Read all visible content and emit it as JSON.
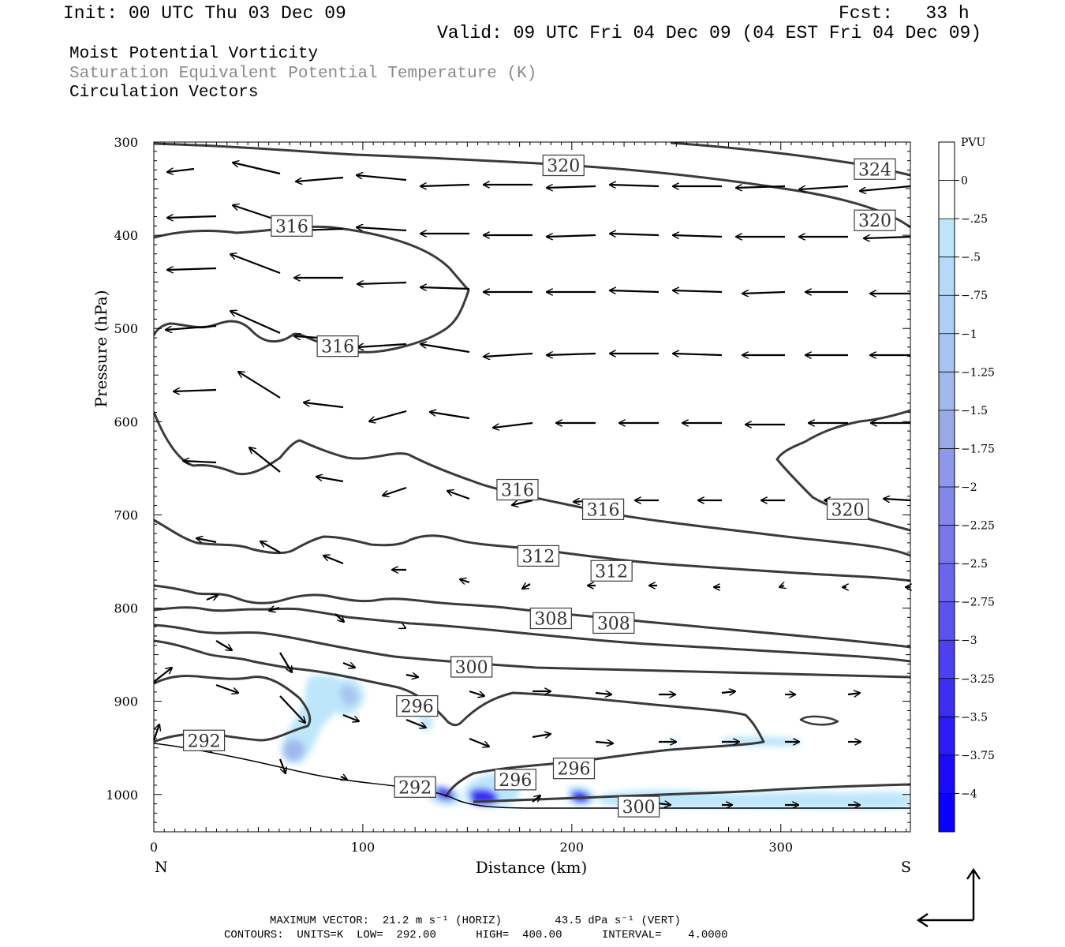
{
  "header": {
    "init": "Init: 00 UTC Thu 03 Dec 09",
    "fcst": "Fcst:   33 h",
    "valid": "Valid: 09 UTC Fri 04 Dec 09 (04 EST Fri 04 Dec 09)"
  },
  "fields": {
    "line1": "Moist Potential Vorticity",
    "line2": "Saturation Equivalent Potential Temperature (K)",
    "line3": "Circulation Vectors"
  },
  "chart_data": {
    "type": "cross-section",
    "xlabel": "Distance (km)",
    "ylabel": "Pressure (hPa)",
    "xlim": [
      0,
      362
    ],
    "ylim": [
      300,
      1040
    ],
    "xticks": [
      0,
      100,
      200,
      300
    ],
    "yticks": [
      300,
      400,
      500,
      600,
      700,
      800,
      900,
      1000
    ],
    "end_labels": {
      "left": "N",
      "right": "S"
    },
    "colorbar": {
      "units": "PVU",
      "labels": [
        "0",
        "-.25",
        "-.5",
        "-.75",
        "-1",
        "-1.25",
        "-1.5",
        "-1.75",
        "-2",
        "-2.25",
        "-2.5",
        "-2.75",
        "-3",
        "-3.25",
        "-3.5",
        "-3.75",
        "-4"
      ],
      "colors": [
        "#ffffff",
        "#ffffff",
        "#bde6fb",
        "#b5daf7",
        "#aecff4",
        "#a7c4f0",
        "#a0b8ec",
        "#98a9ea",
        "#8d98ea",
        "#8387ea",
        "#7776eb",
        "#6a65ed",
        "#5c53ef",
        "#4c40f1",
        "#3c2df3",
        "#2b1bf6",
        "#1a0bf9",
        "#0a00fc"
      ]
    },
    "contour_labels": [
      {
        "text": "320",
        "x": 196,
        "p": 325
      },
      {
        "text": "324",
        "x": 345,
        "p": 329
      },
      {
        "text": "320",
        "x": 345,
        "p": 384
      },
      {
        "text": "316",
        "x": 66,
        "p": 390
      },
      {
        "text": "316",
        "x": 88,
        "p": 519
      },
      {
        "text": "316",
        "x": 174,
        "p": 673
      },
      {
        "text": "316",
        "x": 215,
        "p": 694
      },
      {
        "text": "320",
        "x": 332,
        "p": 694
      },
      {
        "text": "312",
        "x": 184,
        "p": 744
      },
      {
        "text": "312",
        "x": 219,
        "p": 760
      },
      {
        "text": "308",
        "x": 190,
        "p": 811
      },
      {
        "text": "308",
        "x": 220,
        "p": 816
      },
      {
        "text": "300",
        "x": 152,
        "p": 863
      },
      {
        "text": "296",
        "x": 126,
        "p": 905
      },
      {
        "text": "292",
        "x": 24,
        "p": 942
      },
      {
        "text": "292",
        "x": 125,
        "p": 992
      },
      {
        "text": "296",
        "x": 173,
        "p": 984
      },
      {
        "text": "296",
        "x": 201,
        "p": 972
      },
      {
        "text": "300",
        "x": 232,
        "p": 1013
      }
    ]
  },
  "footer": {
    "max_vector": "MAXIMUM VECTOR:  21.2 m s⁻¹ (HORIZ)        43.5 dPa s⁻¹ (VERT)",
    "contours": "CONTOURS:  UNITS=K  LOW=  292.00      HIGH=  400.00      INTERVAL=    4.0000"
  },
  "icons": {
    "reference_vector": "reference-vector-arrows-icon"
  }
}
